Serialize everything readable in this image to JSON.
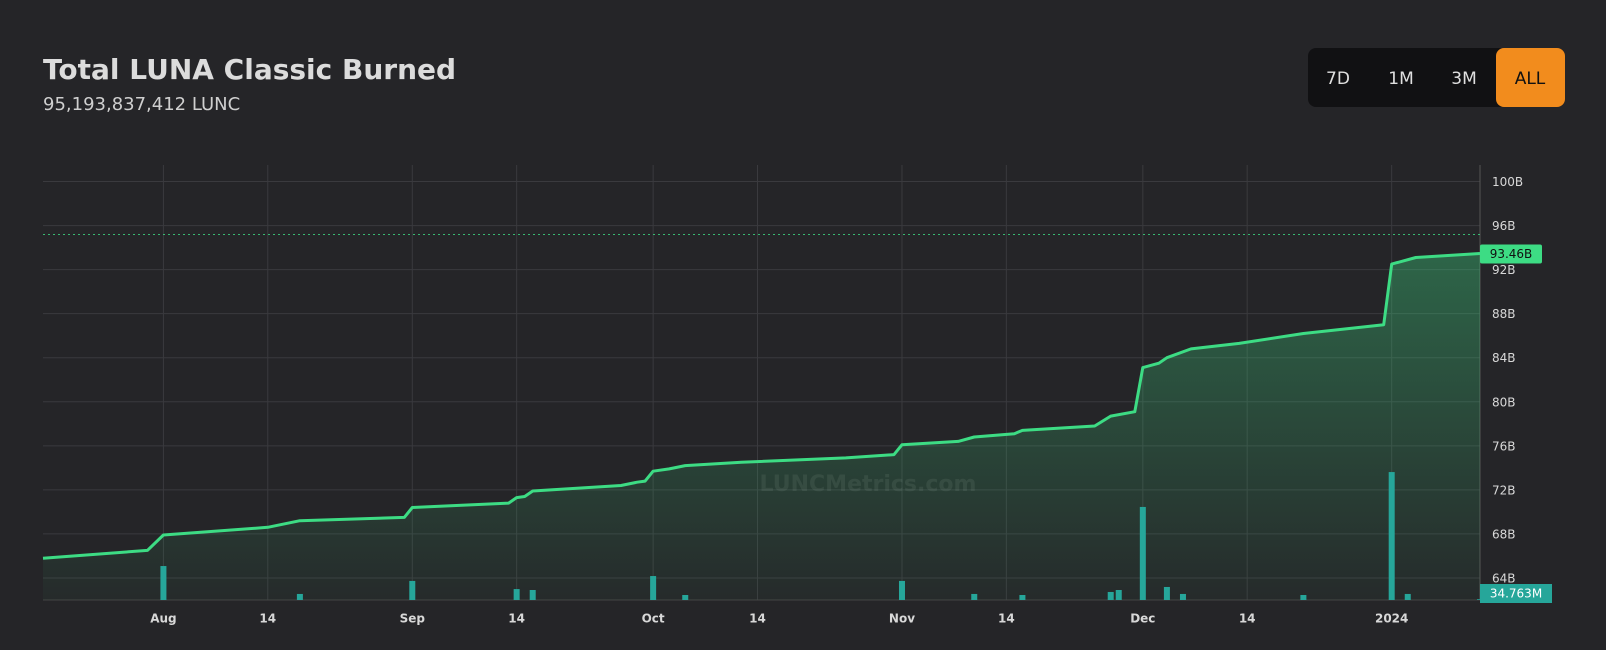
{
  "chart_data": {
    "type": "line",
    "title": "Total LUNA Classic Burned",
    "subtitle": "95,193,837,412 LUNC",
    "buttons": [
      "7D",
      "1M",
      "3M",
      "ALL"
    ],
    "active_button": "ALL",
    "active_color": "#f28c1d",
    "watermark": "LUNCMetrics.com",
    "xlim": [
      "2023-07-17",
      "2024-01-12"
    ],
    "xticks": [
      {
        "value": "2023-08-01",
        "label": "Aug"
      },
      {
        "value": "2023-08-14",
        "label": "14"
      },
      {
        "value": "2023-09-01",
        "label": "Sep"
      },
      {
        "value": "2023-09-14",
        "label": "14"
      },
      {
        "value": "2023-10-01",
        "label": "Oct"
      },
      {
        "value": "2023-10-14",
        "label": "14"
      },
      {
        "value": "2023-11-01",
        "label": "Nov"
      },
      {
        "value": "2023-11-14",
        "label": "14"
      },
      {
        "value": "2023-12-01",
        "label": "Dec"
      },
      {
        "value": "2023-12-14",
        "label": "14"
      },
      {
        "value": "2024-01-01",
        "label": "2024"
      }
    ],
    "ylim": [
      62,
      101.5
    ],
    "yticks": [
      {
        "value": 64,
        "label": "64B"
      },
      {
        "value": 68,
        "label": "68B"
      },
      {
        "value": 72,
        "label": "72B"
      },
      {
        "value": 76,
        "label": "76B"
      },
      {
        "value": 80,
        "label": "80B"
      },
      {
        "value": 84,
        "label": "84B"
      },
      {
        "value": 88,
        "label": "88B"
      },
      {
        "value": 92,
        "label": "92B"
      },
      {
        "value": 96,
        "label": "96B"
      },
      {
        "value": 100,
        "label": "100B"
      }
    ],
    "y2lim": [
      0,
      18700
    ],
    "grid": true,
    "reference_line": 95.19,
    "series": [
      {
        "color": "#3ddc84",
        "axis": "y",
        "x": [
          "2023-07-17",
          "2023-07-30",
          "2023-08-01",
          "2023-08-14",
          "2023-08-18",
          "2023-08-31",
          "2023-09-01",
          "2023-09-13",
          "2023-09-14",
          "2023-09-15",
          "2023-09-16",
          "2023-09-27",
          "2023-09-29",
          "2023-09-30",
          "2023-10-01",
          "2023-10-03",
          "2023-10-05",
          "2023-10-12",
          "2023-10-25",
          "2023-10-31",
          "2023-11-01",
          "2023-11-08",
          "2023-11-10",
          "2023-11-15",
          "2023-11-16",
          "2023-11-25",
          "2023-11-27",
          "2023-11-30",
          "2023-12-01",
          "2023-12-03",
          "2023-12-04",
          "2023-12-07",
          "2023-12-13",
          "2023-12-21",
          "2023-12-31",
          "2024-01-01",
          "2024-01-02",
          "2024-01-04",
          "2024-01-12"
        ],
        "values": [
          65.8,
          66.5,
          67.9,
          68.6,
          69.2,
          69.5,
          70.4,
          70.8,
          71.3,
          71.4,
          71.9,
          72.4,
          72.7,
          72.8,
          73.7,
          73.9,
          74.2,
          74.5,
          74.9,
          75.2,
          76.1,
          76.4,
          76.8,
          77.1,
          77.4,
          77.8,
          78.7,
          79.1,
          83.1,
          83.5,
          84.0,
          84.8,
          85.3,
          86.2,
          87.0,
          92.5,
          92.7,
          93.1,
          93.46
        ],
        "last_label": "93.46B"
      },
      {
        "color": "#26a69a",
        "axis": "y2",
        "type": "bar",
        "x": [
          "2023-08-01",
          "2023-08-18",
          "2023-09-01",
          "2023-09-14",
          "2023-09-16",
          "2023-10-01",
          "2023-10-05",
          "2023-11-01",
          "2023-11-10",
          "2023-11-16",
          "2023-11-27",
          "2023-11-28",
          "2023-12-01",
          "2023-12-04",
          "2023-12-06",
          "2023-12-21",
          "2024-01-01",
          "2024-01-03",
          "2024-01-12"
        ],
        "values": [
          1460,
          260,
          820,
          470,
          430,
          1030,
          215,
          820,
          260,
          215,
          345,
          430,
          4000,
          560,
          260,
          215,
          5500,
          260,
          34.763
        ],
        "last_label": "34.763M"
      }
    ]
  }
}
